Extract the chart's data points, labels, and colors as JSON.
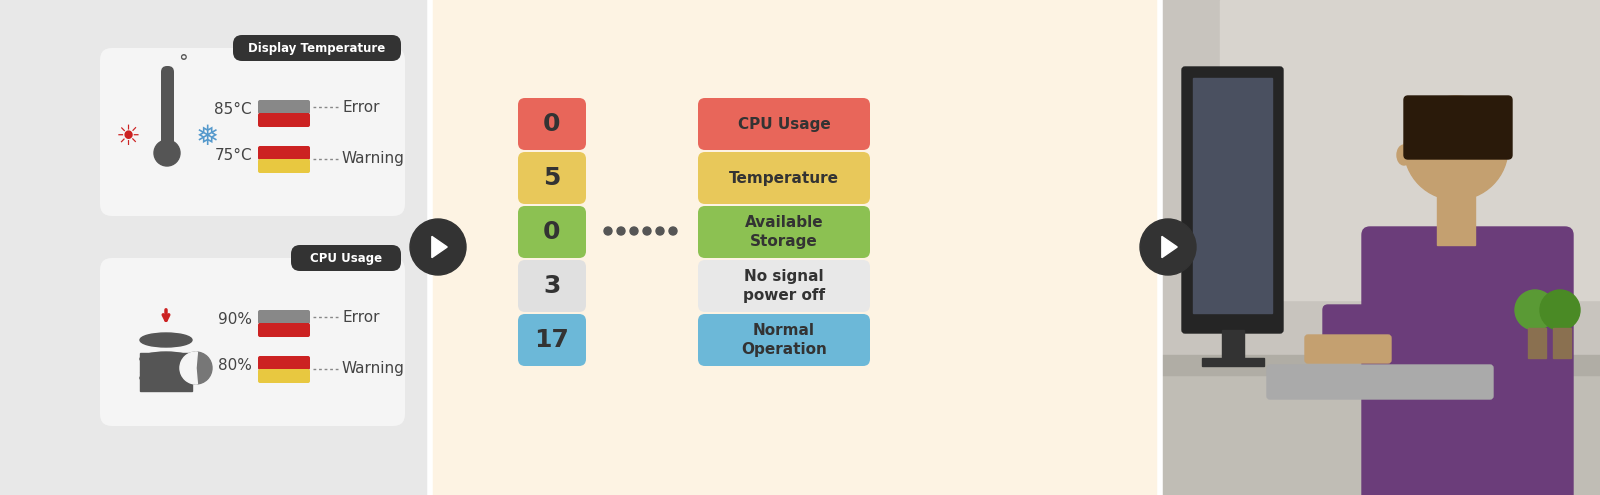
{
  "bg_left": "#e8e8e8",
  "bg_mid": "#fdf3e3",
  "panel1_title": "Display Temperature",
  "panel1_val1": "85°C",
  "panel1_val2": "75°C",
  "panel1_label1": "Error",
  "panel1_label2": "Warning",
  "panel2_title": "CPU Usage",
  "panel2_val1": "90%",
  "panel2_val2": "80%",
  "panel2_label1": "Error",
  "panel2_label2": "Warning",
  "count_values": [
    "0",
    "5",
    "0",
    "3",
    "17"
  ],
  "count_colors": [
    "#e8665a",
    "#e8c85a",
    "#8cc152",
    "#e0e0e0",
    "#6cb8d8"
  ],
  "category_labels": [
    "CPU Usage",
    "Temperature",
    "Available\nStorage",
    "No signal\npower off",
    "Normal\nOperation"
  ],
  "category_colors": [
    "#e8665a",
    "#e8c85a",
    "#8cc152",
    "#e8e8e8",
    "#6cb8d8"
  ],
  "panel_bg": "#f5f5f5",
  "title_bg": "#333333",
  "title_fg": "#ffffff",
  "error_color": "#cc2222",
  "warning_color": "#e8c840",
  "gray_color": "#888888"
}
